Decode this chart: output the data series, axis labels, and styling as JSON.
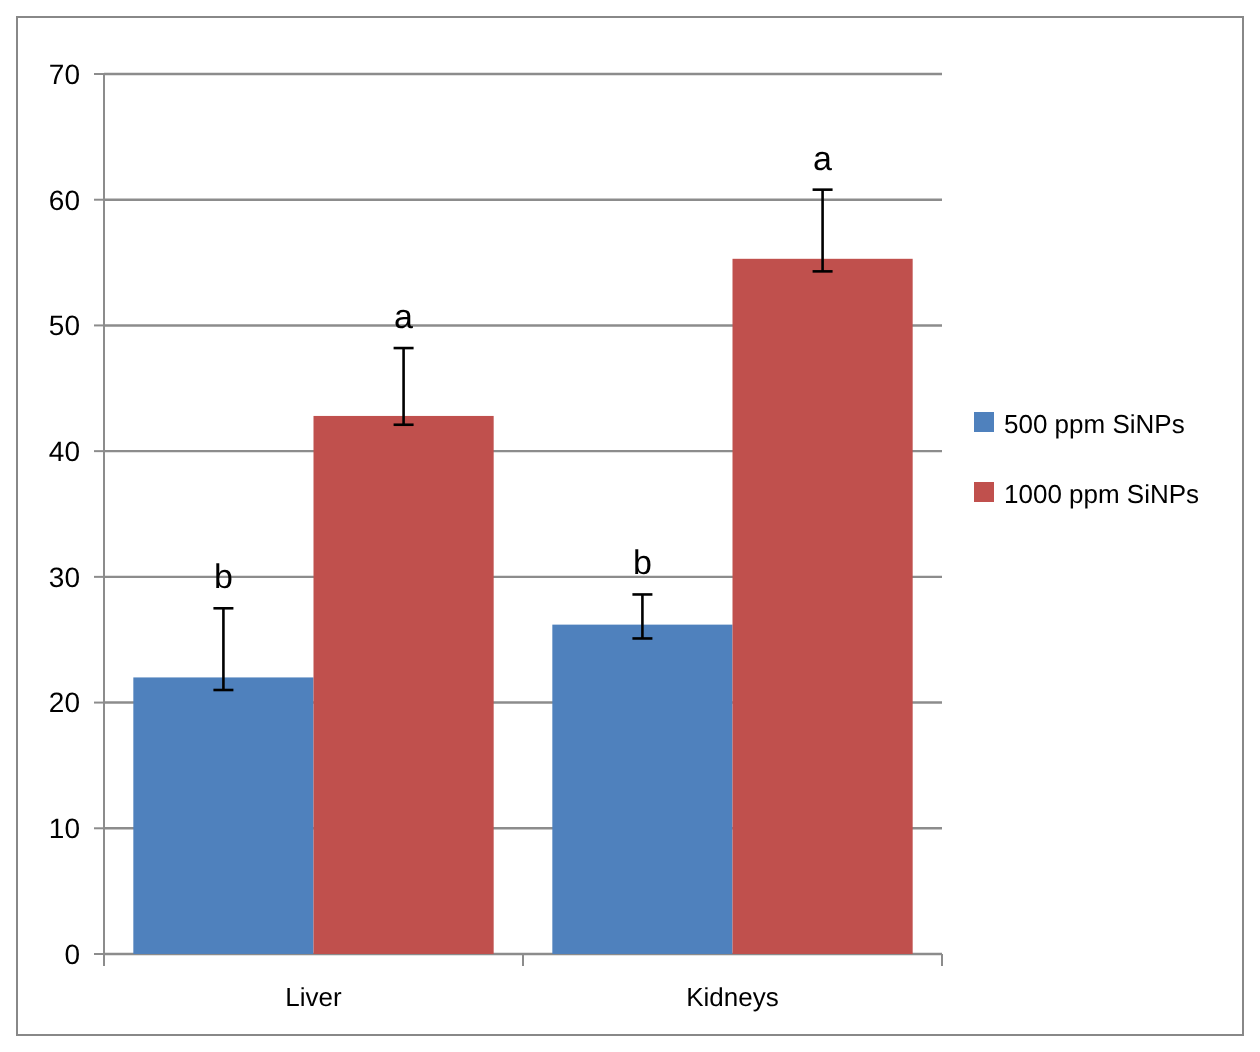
{
  "chart_data": {
    "type": "bar",
    "categories": [
      "Liver",
      "Kidneys"
    ],
    "series": [
      {
        "name": "500 ppm SiNPs",
        "color": "#4f81bd",
        "values": [
          22.0,
          26.2
        ],
        "errors": [
          [
            21.0,
            27.5
          ],
          [
            25.1,
            28.6
          ]
        ]
      },
      {
        "name": "1000 ppm SiNPs",
        "color": "#c0504d",
        "values": [
          42.8,
          55.3
        ],
        "errors": [
          [
            42.1,
            48.2
          ],
          [
            54.3,
            60.8
          ]
        ]
      }
    ],
    "ylim": [
      0,
      70
    ],
    "yticks": [
      0,
      10,
      20,
      30,
      40,
      50,
      60,
      70
    ],
    "grid": "y",
    "legend": "right",
    "annotations": [
      "b",
      "a",
      "b",
      "a"
    ]
  }
}
